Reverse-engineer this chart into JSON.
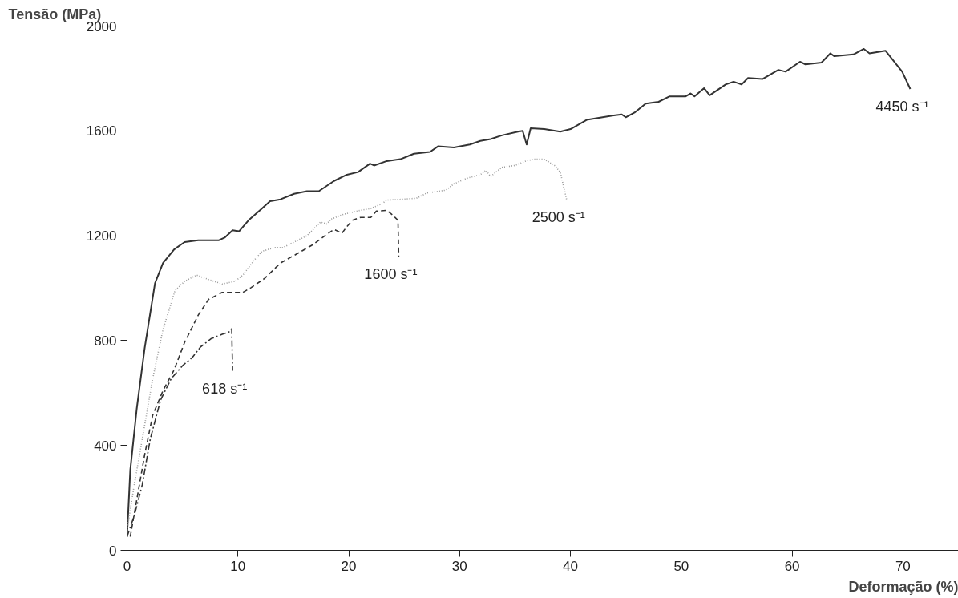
{
  "chart_data": {
    "type": "line",
    "xlabel": "Deformação (%)",
    "ylabel": "Tensão (MPa)",
    "xlim": [
      0,
      75
    ],
    "ylim": [
      0,
      2000
    ],
    "xticks": [
      0,
      10,
      20,
      30,
      40,
      50,
      60,
      70
    ],
    "yticks": [
      0,
      400,
      800,
      1200,
      1600,
      2000
    ],
    "grid": false,
    "legend": false,
    "marker": "none",
    "series": [
      {
        "name": "4450 s⁻¹",
        "color": "#333333",
        "line_style": "solid",
        "x": [
          0.0,
          0.29,
          0.87,
          1.59,
          2.52,
          3.24,
          4.25,
          5.19,
          6.42,
          8.29,
          8.8,
          9.52,
          10.1,
          10.96,
          12.18,
          12.9,
          13.84,
          15.07,
          16.22,
          17.3,
          18.67,
          19.83,
          20.84,
          21.92,
          22.28,
          23.43,
          24.66,
          25.88,
          27.33,
          28.05,
          29.49,
          30.93,
          31.87,
          32.8,
          33.81,
          35.26,
          35.69,
          36.05,
          36.41,
          37.64,
          39.08,
          40.01,
          41.46,
          42.9,
          43.91,
          44.63,
          44.99,
          45.78,
          46.79,
          47.95,
          48.95,
          50.4,
          50.83,
          51.19,
          52.05,
          52.56,
          54.0,
          54.72,
          55.44,
          56.02,
          57.32,
          58.76,
          59.41,
          60.71,
          61.21,
          62.65,
          63.45,
          63.81,
          65.54,
          66.47,
          66.98,
          68.42,
          69.14,
          69.93,
          70.66
        ],
        "values": [
          52,
          306,
          539,
          772,
          1019,
          1096,
          1148,
          1176,
          1183,
          1183,
          1193,
          1221,
          1217,
          1259,
          1304,
          1332,
          1339,
          1360,
          1370,
          1370,
          1409,
          1433,
          1443,
          1475,
          1468,
          1485,
          1492,
          1513,
          1520,
          1541,
          1537,
          1548,
          1562,
          1569,
          1583,
          1597,
          1600,
          1548,
          1610,
          1607,
          1597,
          1607,
          1642,
          1652,
          1659,
          1663,
          1652,
          1670,
          1704,
          1711,
          1732,
          1732,
          1743,
          1732,
          1763,
          1736,
          1777,
          1788,
          1777,
          1802,
          1798,
          1833,
          1826,
          1864,
          1854,
          1861,
          1896,
          1885,
          1892,
          1913,
          1896,
          1906,
          1868,
          1826,
          1760
        ]
      },
      {
        "name": "2500 s⁻¹",
        "color": "#999999",
        "line_style": "dotted",
        "x": [
          0.0,
          0.65,
          1.37,
          2.31,
          3.24,
          4.33,
          5.19,
          6.27,
          7.35,
          8.58,
          9.73,
          10.45,
          11.46,
          12.18,
          13.34,
          14.06,
          15.07,
          16.22,
          17.45,
          18.02,
          18.39,
          19.39,
          20.33,
          21.05,
          21.99,
          23.0,
          23.43,
          24.66,
          26.1,
          27.04,
          28.77,
          29.49,
          30.64,
          31.87,
          32.37,
          32.8,
          33.81,
          34.97,
          35.98,
          36.7,
          37.64,
          38.57,
          39.08,
          39.65
        ],
        "values": [
          77,
          250,
          424,
          654,
          842,
          991,
          1026,
          1050,
          1033,
          1016,
          1026,
          1050,
          1106,
          1141,
          1155,
          1155,
          1176,
          1200,
          1252,
          1245,
          1263,
          1280,
          1290,
          1297,
          1304,
          1322,
          1336,
          1339,
          1343,
          1363,
          1374,
          1398,
          1419,
          1433,
          1450,
          1426,
          1461,
          1468,
          1485,
          1492,
          1492,
          1468,
          1443,
          1339
        ]
      },
      {
        "name": "1600 s⁻¹",
        "color": "#333333",
        "line_style": "dashed",
        "x": [
          0.29,
          0.87,
          1.59,
          2.31,
          3.24,
          4.25,
          5.19,
          6.42,
          7.35,
          8.58,
          10.45,
          11.18,
          12.4,
          13.84,
          15.28,
          16.73,
          18.17,
          18.67,
          19.39,
          19.83,
          20.33,
          21.05,
          21.99,
          22.49,
          23.43,
          23.94,
          24.44,
          24.51
        ],
        "values": [
          52,
          191,
          365,
          515,
          609,
          689,
          793,
          897,
          957,
          984,
          984,
          1002,
          1037,
          1096,
          1130,
          1165,
          1210,
          1224,
          1210,
          1235,
          1259,
          1270,
          1270,
          1294,
          1297,
          1280,
          1259,
          1120
        ]
      },
      {
        "name": "618 s⁻¹",
        "color": "#333333",
        "line_style": "dashdot",
        "x": [
          0.0,
          0.65,
          1.37,
          2.09,
          3.03,
          3.97,
          4.97,
          5.91,
          6.63,
          7.57,
          8.58,
          9.3,
          9.44,
          9.52
        ],
        "values": [
          52,
          132,
          250,
          424,
          574,
          654,
          703,
          737,
          776,
          807,
          824,
          835,
          845,
          685
        ]
      }
    ]
  }
}
